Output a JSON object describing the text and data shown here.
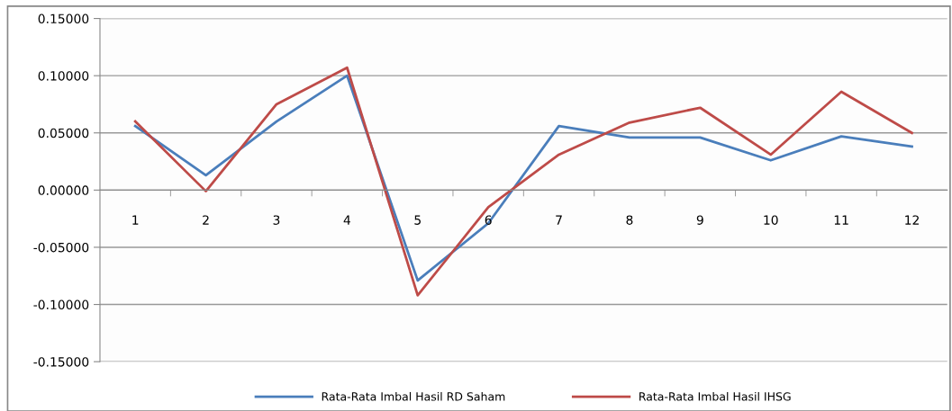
{
  "chart_data": {
    "type": "line",
    "categories": [
      "1",
      "2",
      "3",
      "4",
      "5",
      "6",
      "7",
      "8",
      "9",
      "10",
      "11",
      "12"
    ],
    "series": [
      {
        "name": "Rata-Rata Imbal Hasil RD Saham",
        "color": "#4a7ebb",
        "values": [
          0.056,
          0.013,
          0.06,
          0.1,
          -0.079,
          -0.029,
          0.056,
          0.046,
          0.046,
          0.026,
          0.047,
          0.038
        ]
      },
      {
        "name": "Rata-Rata Imbal Hasil IHSG",
        "color": "#be4b48",
        "values": [
          0.06,
          -0.001,
          0.075,
          0.107,
          -0.092,
          -0.015,
          0.031,
          0.059,
          0.072,
          0.031,
          0.086,
          0.05
        ]
      }
    ],
    "ylim": [
      -0.15,
      0.15
    ],
    "yticks": [
      {
        "value": -0.15,
        "label": "-0.15000"
      },
      {
        "value": -0.1,
        "label": "-0.10000"
      },
      {
        "value": -0.05,
        "label": "-0.05000"
      },
      {
        "value": 0,
        "label": "0.00000"
      },
      {
        "value": 0.05,
        "label": "0.05000"
      },
      {
        "value": 0.1,
        "label": "0.10000"
      },
      {
        "value": 0.15,
        "label": "0.15000"
      }
    ],
    "grid": "y",
    "legend": "bottom",
    "marker": "none",
    "line_style": "solid"
  }
}
